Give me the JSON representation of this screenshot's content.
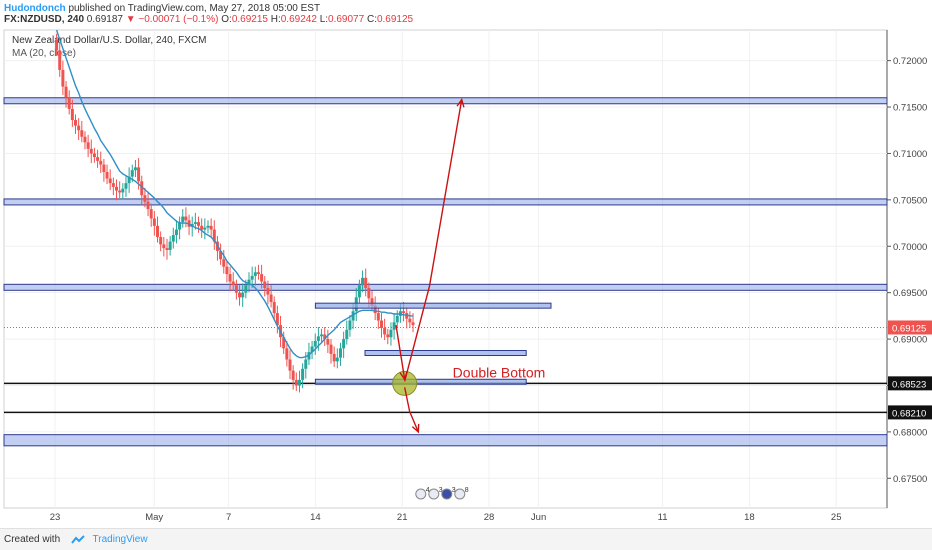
{
  "header": {
    "author": "Hudondonch",
    "published": "published on TradingView.com, May 27, 2018 05:00 EST",
    "symbol": "FX:NZDUSD, 240",
    "last": "0.69187",
    "change": "▼ −0.00071 (−0.1%)",
    "o_label": "O:",
    "o": "0.69215",
    "h_label": "H:",
    "h": "0.69242",
    "l_label": "L:",
    "l": "0.69077",
    "c_label": "C:",
    "c": "0.69125"
  },
  "chart_legend": {
    "title": "New Zealand Dollar/U.S. Dollar, 240, FXCM",
    "indicator": "MA (20, close)"
  },
  "chart_data": {
    "type": "candlestick",
    "x_ticks": [
      "23",
      "May",
      "7",
      "14",
      "21",
      "28",
      "Jun",
      "11",
      "18",
      "25"
    ],
    "y_ticks": [
      "0.72000",
      "0.71500",
      "0.71000",
      "0.70500",
      "0.70000",
      "0.69500",
      "0.69000",
      "0.68500",
      "0.68000",
      "0.67500"
    ],
    "ylim": [
      0.6718,
      0.7233
    ],
    "current_price_label": "0.69125",
    "level_labels": [
      "0.68523",
      "0.68210"
    ],
    "support_resistance_zones": [
      [
        0.7155,
        0.716
      ],
      [
        0.7046,
        0.7051
      ],
      [
        0.6955,
        0.6959
      ],
      [
        0.6785,
        0.6797
      ]
    ],
    "horizontal_lines": [
      0.68523,
      0.6821
    ],
    "small_zones": [
      {
        "from": "May 14",
        "to": "Jun 2",
        "price": 0.6936
      },
      {
        "from": "May 18",
        "to": "May 31",
        "price": 0.6885
      },
      {
        "from": "May 14",
        "to": "May 31",
        "price": 0.6854
      }
    ],
    "annotation": "Double Bottom",
    "close_series": [
      0.7211,
      0.719,
      0.7172,
      0.716,
      0.7148,
      0.7136,
      0.713,
      0.7125,
      0.7118,
      0.7112,
      0.7105,
      0.71,
      0.7096,
      0.7092,
      0.7088,
      0.708,
      0.7073,
      0.7068,
      0.7064,
      0.706,
      0.7058,
      0.7062,
      0.7068,
      0.7075,
      0.7082,
      0.7085,
      0.707,
      0.7055,
      0.7048,
      0.704,
      0.703,
      0.7022,
      0.701,
      0.7002,
      0.6998,
      0.6996,
      0.7005,
      0.7012,
      0.7018,
      0.7026,
      0.7032,
      0.7028,
      0.7021,
      0.7024,
      0.7026,
      0.7022,
      0.7018,
      0.702,
      0.7022,
      0.7018,
      0.7005,
      0.6995,
      0.6986,
      0.6978,
      0.697,
      0.6962,
      0.6958,
      0.695,
      0.6945,
      0.695,
      0.6958,
      0.6964,
      0.6968,
      0.6972,
      0.697,
      0.6962,
      0.6955,
      0.6948,
      0.694,
      0.6928,
      0.6915,
      0.6902,
      0.689,
      0.6878,
      0.6866,
      0.6856,
      0.685,
      0.6856,
      0.6868,
      0.6878,
      0.6886,
      0.6892,
      0.6898,
      0.6903,
      0.6905,
      0.69,
      0.6894,
      0.6884,
      0.6876,
      0.688,
      0.689,
      0.69,
      0.691,
      0.692,
      0.693,
      0.6945,
      0.6958,
      0.6966,
      0.6955,
      0.6944,
      0.6936,
      0.6928,
      0.692,
      0.6912,
      0.6905,
      0.6902,
      0.691,
      0.6918,
      0.6925,
      0.693,
      0.6928,
      0.6922,
      0.6918,
      0.6915
    ],
    "ma_series": [
      0.7233,
      0.7223,
      0.7213,
      0.7203,
      0.7193,
      0.7183,
      0.7173,
      0.7165,
      0.7156,
      0.7148,
      0.7141,
      0.7134,
      0.7127,
      0.7121,
      0.7114,
      0.7109,
      0.7104,
      0.7099,
      0.7093,
      0.7087,
      0.7081,
      0.7078,
      0.7076,
      0.7074,
      0.7072,
      0.707,
      0.7067,
      0.7064,
      0.7061,
      0.7058,
      0.7055,
      0.7052,
      0.7048,
      0.7045,
      0.7041,
      0.7036,
      0.7033,
      0.703,
      0.7027,
      0.7025,
      0.7025,
      0.7025,
      0.7024,
      0.7022,
      0.702,
      0.7019,
      0.7017,
      0.7014,
      0.7012,
      0.701,
      0.7006,
      0.7001,
      0.6995,
      0.699,
      0.6984,
      0.698,
      0.6976,
      0.6972,
      0.6967,
      0.6963,
      0.6961,
      0.696,
      0.6958,
      0.6955,
      0.6951,
      0.6946,
      0.6941,
      0.6935,
      0.6928,
      0.6921,
      0.6914,
      0.6908,
      0.6902,
      0.6896,
      0.689,
      0.6885,
      0.6882,
      0.688,
      0.688,
      0.6881,
      0.6883,
      0.6886,
      0.6889,
      0.6893,
      0.6896,
      0.69,
      0.6904,
      0.6907,
      0.691,
      0.6914,
      0.6918,
      0.692,
      0.6922,
      0.6924,
      0.6926,
      0.6928,
      0.693,
      0.6931,
      0.6931,
      0.6931,
      0.6931,
      0.693,
      0.693,
      0.6929,
      0.6929,
      0.6928,
      0.6928,
      0.6927,
      0.6927,
      0.6927,
      0.6926,
      0.6926,
      0.6925,
      0.6925
    ]
  },
  "event_icons": [
    "4",
    "3",
    "3",
    "8"
  ],
  "footer": {
    "created_with": "Created with",
    "brand": "TradingView"
  },
  "colors": {
    "up": "#26a69a",
    "down": "#ef5350",
    "ma": "#2f8fc7",
    "zone_fill": "#8fa8e8",
    "zone_border": "#2d3a8c",
    "arrow": "#cc1111",
    "marker": "#a7b62a",
    "price_tag": "#ef5350"
  }
}
